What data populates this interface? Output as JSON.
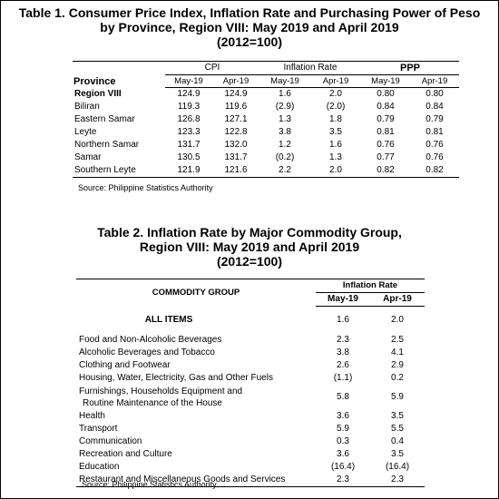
{
  "table1": {
    "title_line1": "Table 1. Consumer Price Index, Inflation Rate and Purchasing Power of Peso",
    "title_line2": "by Province, Region VIII: May 2019 and April 2019",
    "title_line3": "(2012=100)",
    "col_province": "Province",
    "group_cpi": "CPI",
    "group_inflation": "Inflation Rate",
    "group_ppp": "PPP",
    "periods": [
      "May-19",
      "Apr-19",
      "May-19",
      "Apr-19",
      "May-19",
      "Apr-19"
    ],
    "rows": [
      {
        "name": "Region VIII",
        "bold": true,
        "values": [
          "124.9",
          "124.9",
          "1.6",
          "2.0",
          "0.80",
          "0.80"
        ]
      },
      {
        "name": "Biliran",
        "bold": false,
        "values": [
          "119.3",
          "119.6",
          "(2.9)",
          "(2.0)",
          "0.84",
          "0.84"
        ]
      },
      {
        "name": "Eastern Samar",
        "bold": false,
        "values": [
          "126.8",
          "127.1",
          "1.3",
          "1.8",
          "0.79",
          "0.79"
        ]
      },
      {
        "name": "Leyte",
        "bold": false,
        "values": [
          "123.3",
          "122.8",
          "3.8",
          "3.5",
          "0.81",
          "0.81"
        ]
      },
      {
        "name": "Northern Samar",
        "bold": false,
        "values": [
          "131.7",
          "132.0",
          "1.2",
          "1.6",
          "0.76",
          "0.76"
        ]
      },
      {
        "name": "Samar",
        "bold": false,
        "values": [
          "130.5",
          "131.7",
          "(0.2)",
          "1.3",
          "0.77",
          "0.76"
        ]
      },
      {
        "name": "Southern Leyte",
        "bold": false,
        "values": [
          "121.9",
          "121.6",
          "2.2",
          "2.0",
          "0.82",
          "0.82"
        ]
      }
    ],
    "source": "Source: Philippine Statistics Authority"
  },
  "table2": {
    "title_line1": "Table 2. Inflation Rate by Major Commodity Group,",
    "title_line2": "Region VIII: May 2019 and April 2019",
    "title_line3": "(2012=100)",
    "col_group": "COMMODITY GROUP",
    "group_inflation": "Inflation Rate",
    "periods": [
      "May-19",
      "Apr-19"
    ],
    "all_items": {
      "name": "ALL ITEMS",
      "values": [
        "1.6",
        "2.0"
      ]
    },
    "rows": [
      {
        "name": "Food and Non-Alcoholic Beverages",
        "values": [
          "2.3",
          "2.5"
        ]
      },
      {
        "name": "Alcoholic Beverages and Tobacco",
        "values": [
          "3.8",
          "4.1"
        ]
      },
      {
        "name": "Clothing and Footwear",
        "values": [
          "2.6",
          "2.9"
        ]
      },
      {
        "name": "Housing, Water, Electricity, Gas and Other Fuels",
        "values": [
          "(1.1)",
          "0.2"
        ]
      },
      {
        "name": "Furnishings, Households Equipment and",
        "name2": "Routine Maintenance of the House",
        "values": [
          "5.8",
          "5.9"
        ]
      },
      {
        "name": "Health",
        "values": [
          "3.6",
          "3.5"
        ]
      },
      {
        "name": "Transport",
        "values": [
          "5.9",
          "5.5"
        ]
      },
      {
        "name": "Communication",
        "values": [
          "0.3",
          "0.4"
        ]
      },
      {
        "name": "Recreation and Culture",
        "values": [
          "3.6",
          "3.5"
        ]
      },
      {
        "name": "Education",
        "values": [
          "(16.4)",
          "(16.4)"
        ]
      },
      {
        "name": "Restaurant and Miscellaneous Goods and Services",
        "values": [
          "2.3",
          "2.3"
        ]
      }
    ],
    "source": "Source: Philippine Statistics Authority"
  }
}
